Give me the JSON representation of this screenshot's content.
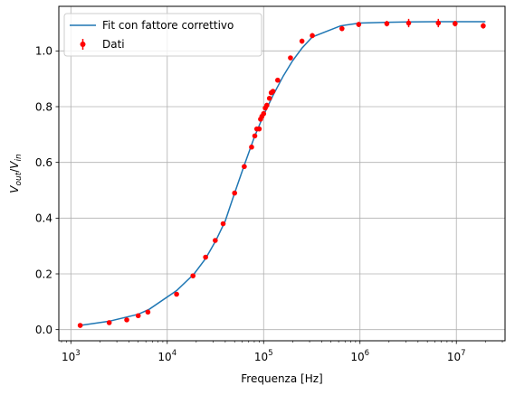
{
  "chart_data": {
    "type": "scatter",
    "xlabel": "Frequenza [Hz]",
    "ylabel": "V_out/V_in",
    "ylabel_parts": {
      "base": "V",
      "sub1": "out",
      "slash": "/",
      "base2": "V",
      "sub2": "in"
    },
    "xscale": "log",
    "xlim": [
      750,
      32000000
    ],
    "ylim": [
      -0.04,
      1.16
    ],
    "grid": true,
    "legend_position": "upper left",
    "x_ticks": [
      {
        "value": 1000,
        "base": "10",
        "exp": "3"
      },
      {
        "value": 10000,
        "base": "10",
        "exp": "4"
      },
      {
        "value": 100000,
        "base": "10",
        "exp": "5"
      },
      {
        "value": 1000000,
        "base": "10",
        "exp": "6"
      },
      {
        "value": 10000000,
        "base": "10",
        "exp": "7"
      }
    ],
    "y_ticks": [
      {
        "value": 0.0,
        "label": "0.0"
      },
      {
        "value": 0.2,
        "label": "0.2"
      },
      {
        "value": 0.4,
        "label": "0.4"
      },
      {
        "value": 0.6,
        "label": "0.6"
      },
      {
        "value": 0.8,
        "label": "0.8"
      },
      {
        "value": 1.0,
        "label": "1.0"
      }
    ],
    "series": [
      {
        "name": "Fit con fattore correttivo",
        "kind": "line",
        "color": "#1f77b4",
        "x": [
          1250,
          2500,
          5000,
          6500,
          12500,
          19000,
          25000,
          32000,
          40000,
          50000,
          63000,
          80000,
          100000,
          125000,
          160000,
          200000,
          250000,
          320000,
          630000,
          1000000,
          2000000,
          3200000,
          6300000,
          10000000,
          20000000
        ],
        "y": [
          0.015,
          0.03,
          0.055,
          0.073,
          0.14,
          0.2,
          0.255,
          0.32,
          0.39,
          0.49,
          0.59,
          0.69,
          0.77,
          0.84,
          0.91,
          0.965,
          1.01,
          1.05,
          1.09,
          1.1,
          1.103,
          1.104,
          1.105,
          1.105,
          1.105
        ]
      },
      {
        "name": "Dati",
        "kind": "errorbar",
        "color": "#ff0000",
        "x": [
          1250,
          2500,
          3800,
          5000,
          6300,
          12500,
          18500,
          25000,
          31500,
          38000,
          50000,
          63000,
          75000,
          81000,
          85000,
          90000,
          93000,
          96000,
          100000,
          104000,
          108000,
          115000,
          120000,
          125000,
          140000,
          190000,
          250000,
          320000,
          650000,
          970000,
          1900000,
          3200000,
          6500000,
          9700000,
          19000000
        ],
        "y": [
          0.015,
          0.025,
          0.035,
          0.05,
          0.063,
          0.127,
          0.193,
          0.26,
          0.32,
          0.38,
          0.49,
          0.585,
          0.655,
          0.695,
          0.72,
          0.72,
          0.755,
          0.765,
          0.775,
          0.795,
          0.805,
          0.83,
          0.85,
          0.855,
          0.895,
          0.975,
          1.035,
          1.055,
          1.08,
          1.095,
          1.098,
          1.1,
          1.1,
          1.098,
          1.09
        ],
        "yerr": [
          0.003,
          0.003,
          0.003,
          0.004,
          0.004,
          0.005,
          0.005,
          0.006,
          0.006,
          0.006,
          0.007,
          0.007,
          0.007,
          0.008,
          0.008,
          0.008,
          0.008,
          0.008,
          0.008,
          0.008,
          0.008,
          0.008,
          0.008,
          0.008,
          0.008,
          0.008,
          0.009,
          0.009,
          0.009,
          0.009,
          0.01,
          0.015,
          0.015,
          0.01,
          0.01
        ]
      }
    ]
  }
}
